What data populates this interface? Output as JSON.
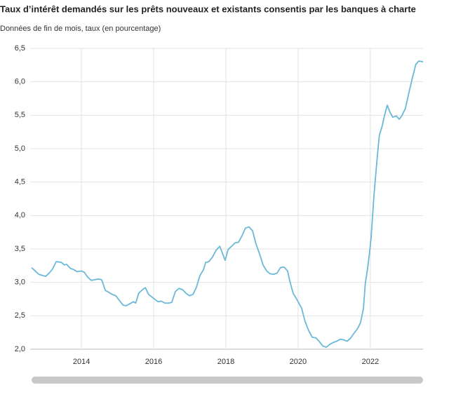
{
  "chart_data": {
    "type": "line",
    "title": "Taux d’intérêt demandés sur les prêts nouveaux et existants consentis par les banques à charte",
    "subtitle": "Données de fin de mois, taux (en pourcentage)",
    "x": [
      2012.62,
      2012.72,
      2012.82,
      2013.01,
      2013.11,
      2013.2,
      2013.3,
      2013.44,
      2013.53,
      2013.59,
      2013.69,
      2013.79,
      2013.88,
      2014.0,
      2014.08,
      2014.17,
      2014.27,
      2014.37,
      2014.47,
      2014.56,
      2014.66,
      2014.76,
      2014.85,
      2014.95,
      2015.05,
      2015.15,
      2015.24,
      2015.34,
      2015.44,
      2015.5,
      2015.59,
      2015.69,
      2015.77,
      2015.86,
      2016.0,
      2016.12,
      2016.21,
      2016.31,
      2016.41,
      2016.5,
      2016.6,
      2016.7,
      2016.8,
      2016.89,
      2016.99,
      2017.09,
      2017.18,
      2017.28,
      2017.38,
      2017.44,
      2017.53,
      2017.63,
      2017.73,
      2017.83,
      2017.88,
      2017.98,
      2018.06,
      2018.16,
      2018.25,
      2018.35,
      2018.45,
      2018.54,
      2018.64,
      2018.74,
      2018.83,
      2018.93,
      2019.03,
      2019.13,
      2019.22,
      2019.32,
      2019.42,
      2019.51,
      2019.61,
      2019.71,
      2019.77,
      2019.86,
      2019.98,
      2020.1,
      2020.19,
      2020.29,
      2020.39,
      2020.49,
      2020.58,
      2020.68,
      2020.78,
      2020.87,
      2020.97,
      2021.07,
      2021.17,
      2021.26,
      2021.36,
      2021.46,
      2021.55,
      2021.65,
      2021.73,
      2021.81,
      2021.86,
      2021.92,
      2021.98,
      2022.02,
      2022.06,
      2022.1,
      2022.14,
      2022.19,
      2022.25,
      2022.33,
      2022.39,
      2022.47,
      2022.54,
      2022.62,
      2022.72,
      2022.8,
      2022.87,
      2022.97,
      2023.07,
      2023.17,
      2023.26,
      2023.34,
      2023.46
    ],
    "series": [
      {
        "name": "Taux",
        "color": "#6bb8d9",
        "values": [
          3.22,
          3.17,
          3.12,
          3.09,
          3.14,
          3.2,
          3.31,
          3.3,
          3.26,
          3.27,
          3.21,
          3.19,
          3.16,
          3.17,
          3.15,
          3.08,
          3.03,
          3.04,
          3.05,
          3.04,
          2.88,
          2.85,
          2.82,
          2.8,
          2.73,
          2.66,
          2.65,
          2.68,
          2.71,
          2.69,
          2.84,
          2.89,
          2.92,
          2.82,
          2.76,
          2.71,
          2.72,
          2.69,
          2.69,
          2.7,
          2.86,
          2.91,
          2.89,
          2.84,
          2.8,
          2.82,
          2.92,
          3.1,
          3.19,
          3.3,
          3.31,
          3.38,
          3.48,
          3.54,
          3.47,
          3.33,
          3.49,
          3.54,
          3.59,
          3.6,
          3.7,
          3.81,
          3.83,
          3.77,
          3.58,
          3.43,
          3.26,
          3.17,
          3.13,
          3.12,
          3.14,
          3.22,
          3.23,
          3.17,
          3.02,
          2.84,
          2.73,
          2.61,
          2.42,
          2.28,
          2.18,
          2.17,
          2.12,
          2.05,
          2.03,
          2.07,
          2.1,
          2.12,
          2.15,
          2.14,
          2.12,
          2.17,
          2.24,
          2.31,
          2.4,
          2.61,
          2.98,
          3.19,
          3.45,
          3.66,
          3.97,
          4.29,
          4.55,
          4.86,
          5.2,
          5.34,
          5.49,
          5.65,
          5.55,
          5.47,
          5.49,
          5.44,
          5.49,
          5.6,
          5.84,
          6.07,
          6.26,
          6.31,
          6.3
        ]
      }
    ],
    "xlim": [
      2012.58,
      2023.46
    ],
    "xticks": [
      2014,
      2016,
      2018,
      2020,
      2022
    ],
    "ylim": [
      2.0,
      6.5
    ],
    "yticks": [
      {
        "value": 2.0,
        "label": "2,0"
      },
      {
        "value": 2.5,
        "label": "2,5"
      },
      {
        "value": 3.0,
        "label": "3,0"
      },
      {
        "value": 3.5,
        "label": "3,5"
      },
      {
        "value": 4.0,
        "label": "4,0"
      },
      {
        "value": 4.5,
        "label": "4,5"
      },
      {
        "value": 5.0,
        "label": "5,0"
      },
      {
        "value": 5.5,
        "label": "5,5"
      },
      {
        "value": 6.0,
        "label": "6,0"
      },
      {
        "value": 6.5,
        "label": "6,5"
      }
    ],
    "grid": true
  }
}
